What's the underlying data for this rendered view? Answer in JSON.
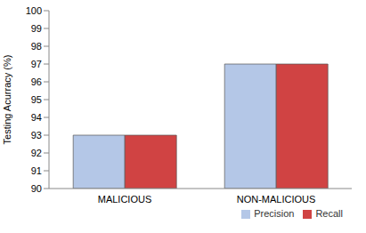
{
  "chart_data": {
    "type": "bar",
    "categories": [
      "MALICIOUS",
      "NON-MALICIOUS"
    ],
    "series": [
      {
        "name": "Precision",
        "color": "#b4c7e7",
        "values": [
          93,
          97
        ]
      },
      {
        "name": "Recall",
        "color": "#d04343",
        "values": [
          93,
          97
        ]
      }
    ],
    "y_label": "Testing Acurracy (%)",
    "ylim": [
      90,
      100
    ],
    "yticks": [
      90,
      91,
      92,
      93,
      94,
      95,
      96,
      97,
      98,
      99,
      100
    ],
    "grid": false,
    "legend": "lower right"
  }
}
